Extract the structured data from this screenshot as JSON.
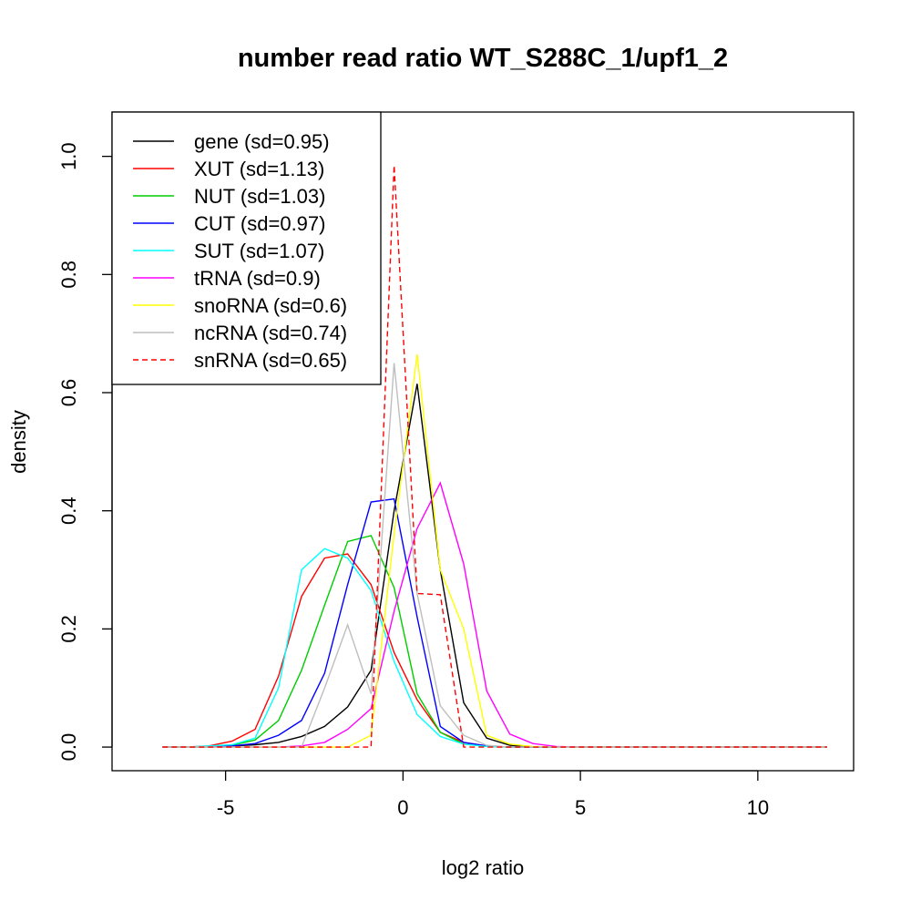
{
  "chart_data": {
    "type": "line",
    "title": "number read ratio WT_S288C_1/upf1_2",
    "xlabel": "log2 ratio",
    "ylabel": "density",
    "xlim": [
      -8.2,
      12.7
    ],
    "ylim": [
      -0.04,
      1.075
    ],
    "xticks": [
      -5,
      0,
      5,
      10
    ],
    "yticks": [
      0.0,
      0.2,
      0.4,
      0.6,
      0.8,
      1.0
    ],
    "x": [
      -6.78,
      -6.13,
      -5.47,
      -4.82,
      -4.17,
      -3.51,
      -2.86,
      -2.21,
      -1.56,
      -0.9,
      -0.25,
      0.4,
      1.05,
      1.71,
      2.36,
      3.01,
      3.66,
      4.32,
      4.97,
      5.62,
      6.27,
      6.93,
      7.58,
      8.23,
      8.88,
      9.54,
      10.19,
      10.84,
      11.49,
      11.95
    ],
    "grid": false,
    "legend_position": "top-left",
    "series": [
      {
        "name": "gene (sd=0.95)",
        "color": "#000000",
        "dash": false,
        "values": [
          0,
          0,
          0.001,
          0.002,
          0.004,
          0.008,
          0.018,
          0.035,
          0.068,
          0.13,
          0.4,
          0.615,
          0.3,
          0.075,
          0.015,
          0.003,
          0,
          0,
          0,
          0,
          0,
          0,
          0,
          0,
          0,
          0,
          0,
          0,
          0,
          0
        ]
      },
      {
        "name": "XUT (sd=1.13)",
        "color": "#ff0000",
        "dash": false,
        "values": [
          0,
          0,
          0.002,
          0.01,
          0.03,
          0.12,
          0.255,
          0.32,
          0.327,
          0.275,
          0.16,
          0.08,
          0.025,
          0.008,
          0.002,
          0,
          0,
          0,
          0,
          0,
          0,
          0,
          0,
          0,
          0,
          0,
          0,
          0,
          0,
          0
        ]
      },
      {
        "name": "NUT (sd=1.03)",
        "color": "#00cd00",
        "dash": false,
        "values": [
          0,
          0,
          0,
          0.003,
          0.012,
          0.045,
          0.13,
          0.24,
          0.348,
          0.358,
          0.27,
          0.09,
          0.025,
          0.005,
          0.001,
          0,
          0,
          0,
          0,
          0,
          0,
          0,
          0,
          0,
          0,
          0,
          0,
          0,
          0,
          0
        ]
      },
      {
        "name": "CUT (sd=0.97)",
        "color": "#0000ff",
        "dash": false,
        "values": [
          0,
          0,
          0,
          0.002,
          0.006,
          0.02,
          0.045,
          0.125,
          0.275,
          0.415,
          0.42,
          0.22,
          0.035,
          0.008,
          0.002,
          0,
          0,
          0,
          0,
          0,
          0,
          0,
          0,
          0,
          0,
          0,
          0,
          0,
          0,
          0
        ]
      },
      {
        "name": "SUT (sd=1.07)",
        "color": "#00ffff",
        "dash": false,
        "values": [
          0,
          0,
          0.002,
          0.004,
          0.015,
          0.1,
          0.3,
          0.336,
          0.32,
          0.265,
          0.145,
          0.055,
          0.018,
          0.005,
          0.001,
          0,
          0,
          0,
          0,
          0,
          0,
          0,
          0,
          0,
          0,
          0,
          0,
          0,
          0,
          0
        ]
      },
      {
        "name": "tRNA (sd=0.9)",
        "color": "#ff00ff",
        "dash": false,
        "values": [
          0,
          0,
          0,
          0,
          0,
          0,
          0.002,
          0.008,
          0.03,
          0.065,
          0.23,
          0.37,
          0.447,
          0.31,
          0.095,
          0.022,
          0.006,
          0.001,
          0,
          0,
          0,
          0,
          0,
          0,
          0,
          0,
          0,
          0,
          0,
          0
        ]
      },
      {
        "name": "snoRNA (sd=0.6)",
        "color": "#ffff00",
        "dash": false,
        "values": [
          0,
          0,
          0,
          0,
          0,
          0,
          0,
          0,
          0,
          0.02,
          0.36,
          0.665,
          0.3,
          0.2,
          0.02,
          0.005,
          0.001,
          0,
          0,
          0,
          0,
          0,
          0,
          0,
          0,
          0,
          0,
          0,
          0,
          0
        ]
      },
      {
        "name": "ncRNA (sd=0.74)",
        "color": "#bebebe",
        "dash": false,
        "values": [
          0,
          0,
          0,
          0,
          0,
          0,
          0,
          0.1,
          0.207,
          0.09,
          0.65,
          0.26,
          0.07,
          0.02,
          0.003,
          0,
          0,
          0,
          0,
          0,
          0,
          0,
          0,
          0,
          0,
          0,
          0,
          0,
          0,
          0
        ]
      },
      {
        "name": "snRNA (sd=0.65)",
        "color": "#ff0000",
        "dash": true,
        "values": [
          0,
          0,
          0,
          0,
          0,
          0,
          0,
          0,
          0,
          0,
          0.985,
          0.26,
          0.258,
          0,
          0,
          0,
          0,
          0,
          0,
          0,
          0,
          0,
          0,
          0,
          0,
          0,
          0,
          0,
          0,
          0
        ]
      }
    ]
  }
}
